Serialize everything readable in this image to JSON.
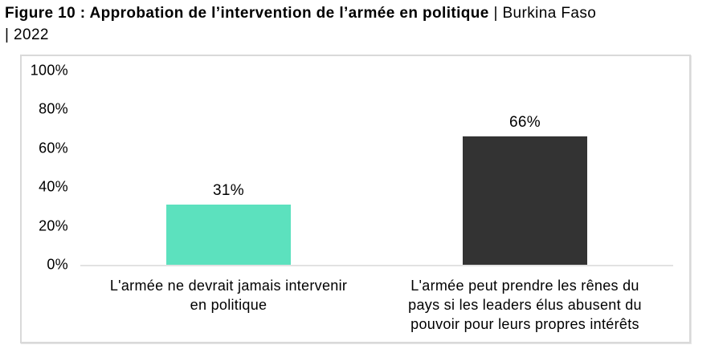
{
  "title": {
    "bold": "Figure 10 : Approbation de l’intervention de l’armée en politique",
    "regular_line1": " | Burkina Faso",
    "line2": "| 2022"
  },
  "colors": {
    "bar_teal": "#5CE1BE",
    "bar_dark": "#333333",
    "frame_border": "#D9D9D9",
    "axis_line": "#E2E2E2",
    "text": "#000000"
  },
  "chart_data": {
    "type": "bar",
    "title": "Figure 10 : Approbation de l’intervention de l’armée en politique | Burkina Faso | 2022",
    "categories": [
      "L'armée ne devrait jamais intervenir en politique",
      "L'armée peut prendre les rênes du pays si les leaders élus abusent du pouvoir pour leurs propres intérêts"
    ],
    "categories_lines": [
      [
        "L'armée ne devrait jamais intervenir",
        "en politique"
      ],
      [
        "L'armée peut prendre les rênes du",
        "pays si les leaders élus abusent du",
        "pouvoir pour leurs propres intérêts"
      ]
    ],
    "values": [
      31,
      66
    ],
    "value_labels": [
      "31%",
      "66%"
    ],
    "bar_colors": [
      "#5CE1BE",
      "#333333"
    ],
    "xlabel": "",
    "ylabel": "",
    "ylim": [
      0,
      100
    ],
    "yticks": [
      "100%",
      "80%",
      "60%",
      "40%",
      "20%",
      "0%"
    ],
    "grid": false,
    "legend": false
  }
}
